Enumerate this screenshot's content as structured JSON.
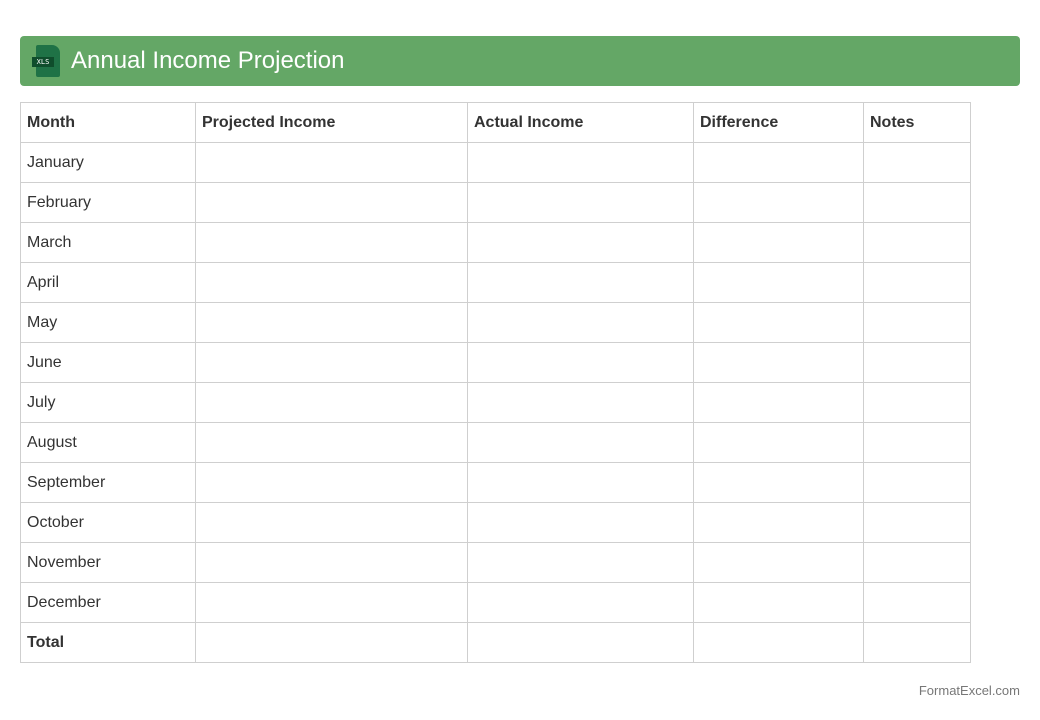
{
  "header": {
    "title": "Annual Income Projection",
    "icon": "xls-file-icon",
    "icon_text": "XLS",
    "color": "#64a766"
  },
  "table": {
    "columns": [
      "Month",
      "Projected Income",
      "Actual Income",
      "Difference",
      "Notes"
    ],
    "rows": [
      "January",
      "February",
      "March",
      "April",
      "May",
      "June",
      "July",
      "August",
      "September",
      "October",
      "November",
      "December"
    ],
    "total_label": "Total"
  },
  "footer": {
    "text": "FormatExcel.com"
  }
}
